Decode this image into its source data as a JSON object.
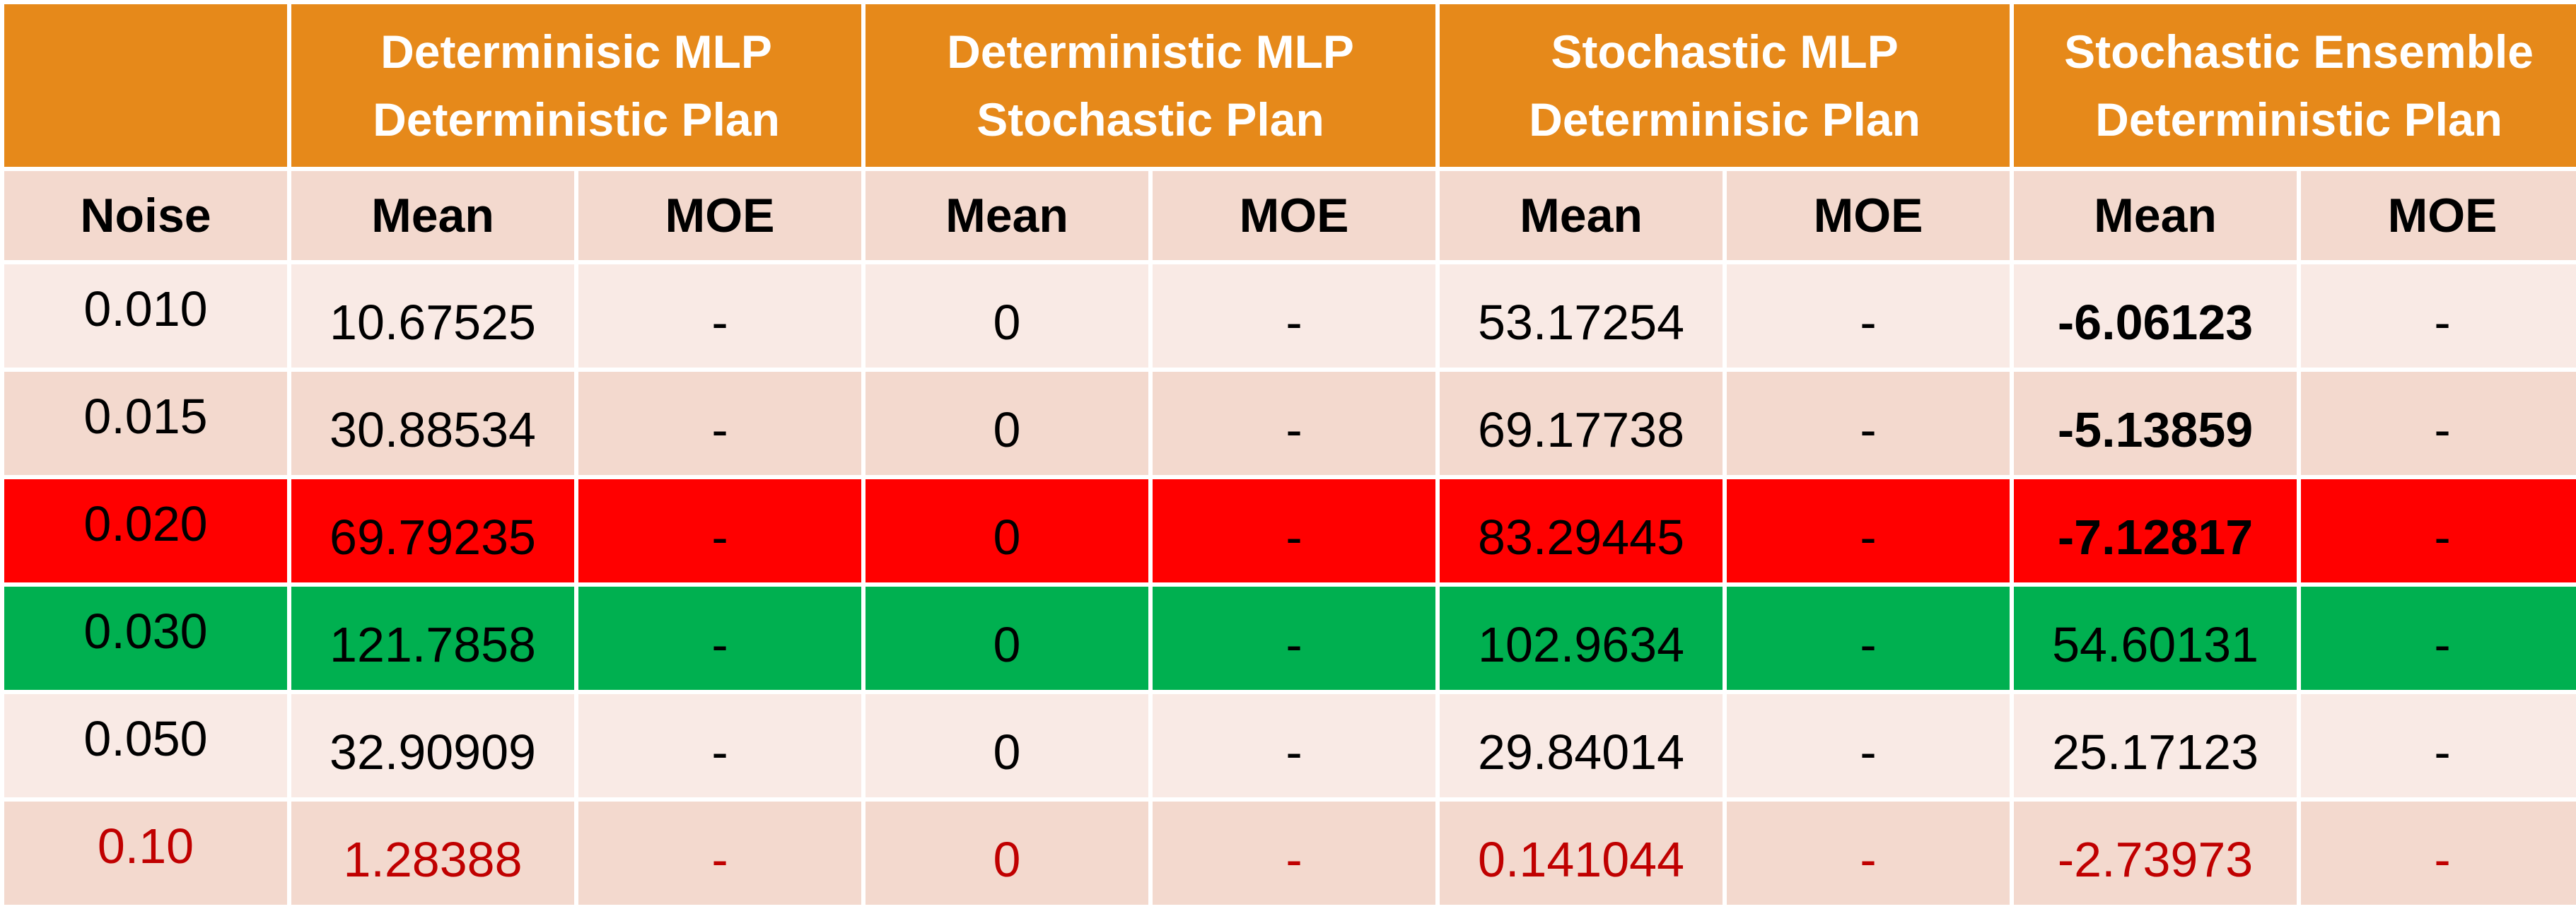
{
  "header": {
    "groups": [
      {
        "line1": "Determinisic MLP",
        "line2": "Deterministic Plan"
      },
      {
        "line1": "Deterministic MLP",
        "line2": "Stochastic Plan"
      },
      {
        "line1": "Stochastic MLP",
        "line2": "Determinisic Plan"
      },
      {
        "line1": "Stochastic Ensemble",
        "line2": "Deterministic Plan"
      }
    ],
    "noise_label": "Noise",
    "mean_label": "Mean",
    "moe_label": "MOE"
  },
  "rows": [
    {
      "noise": "0.010",
      "values": [
        "10.67525",
        "-",
        "0",
        "-",
        "53.17254",
        "-",
        "-6.06123",
        "-"
      ]
    },
    {
      "noise": "0.015",
      "values": [
        "30.88534",
        "-",
        "0",
        "-",
        "69.17738",
        "-",
        "-5.13859",
        "-"
      ]
    },
    {
      "noise": "0.020",
      "values": [
        "69.79235",
        "-",
        "0",
        "-",
        "83.29445",
        "-",
        "-7.12817",
        "-"
      ]
    },
    {
      "noise": "0.030",
      "values": [
        "121.7858",
        "-",
        "0",
        "-",
        "102.9634",
        "-",
        "54.60131",
        "-"
      ]
    },
    {
      "noise": "0.050",
      "values": [
        "32.90909",
        "-",
        "0",
        "-",
        "29.84014",
        "-",
        "25.17123",
        "-"
      ]
    },
    {
      "noise": "0.10",
      "values": [
        "1.28388",
        "-",
        "0",
        "-",
        "0.141044",
        "-",
        "-2.73973",
        "-"
      ]
    }
  ],
  "colors": {
    "header_orange": "#E6891A",
    "band_light": "#F9EAE5",
    "band_medium": "#F3D9CE",
    "highlight_red": "#FF0000",
    "highlight_green": "#00B050",
    "text_dark_red": "#C00000"
  }
}
